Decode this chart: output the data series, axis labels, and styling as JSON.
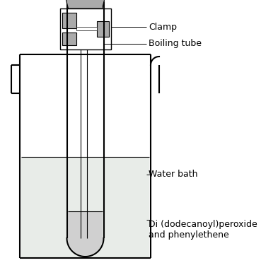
{
  "bg_color": "#ffffff",
  "line_color": "#000000",
  "gray_fill": "#aaaaaa",
  "light_gray_fill": "#d0d0d0",
  "water_fill": "#e8ece8",
  "labels": {
    "clamp": "Clamp",
    "boiling_tube": "Boiling tube",
    "water_bath": "Water bath",
    "chemical": "Di (dodecanoyl)peroxide\nand phenylethene"
  },
  "label_fontsize": 9,
  "figsize": [
    3.69,
    3.82
  ],
  "dpi": 100
}
